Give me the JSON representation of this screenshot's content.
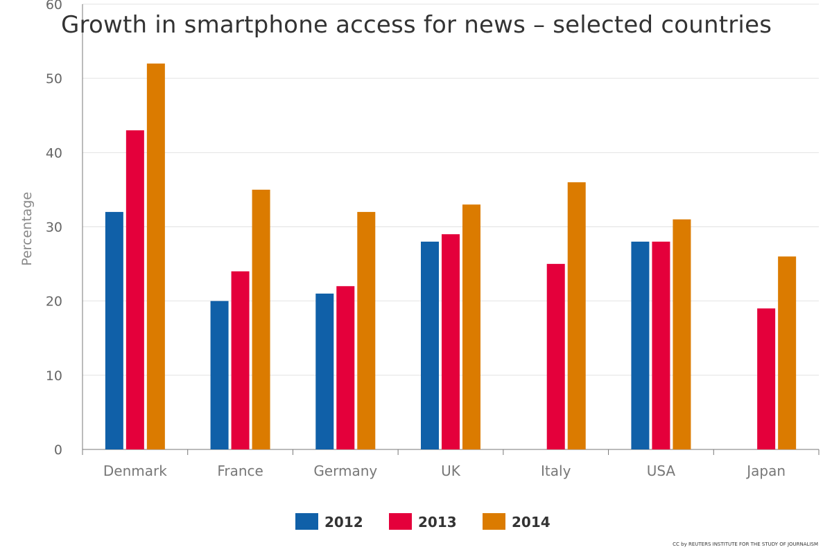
{
  "chart_data": {
    "type": "bar",
    "title": "Growth in smartphone access for news – selected countries",
    "ylabel": "Percentage",
    "xlabel": "",
    "ylim": [
      0,
      60
    ],
    "yticks": [
      0,
      10,
      20,
      30,
      40,
      50,
      60
    ],
    "grid": true,
    "legend_position": "bottom-center",
    "categories": [
      "Denmark",
      "France",
      "Germany",
      "UK",
      "Italy",
      "USA",
      "Japan"
    ],
    "series": [
      {
        "name": "2012",
        "color": "#1060A8",
        "values": [
          32,
          20,
          21,
          28,
          null,
          28,
          null
        ]
      },
      {
        "name": "2013",
        "color": "#E4003B",
        "values": [
          43,
          24,
          22,
          29,
          25,
          28,
          19
        ]
      },
      {
        "name": "2014",
        "color": "#DB7B00",
        "values": [
          52,
          35,
          32,
          33,
          36,
          31,
          26
        ]
      }
    ],
    "credit": "CC by REUTERS INSTITUTE FOR THE STUDY OF JOURNALISM"
  }
}
